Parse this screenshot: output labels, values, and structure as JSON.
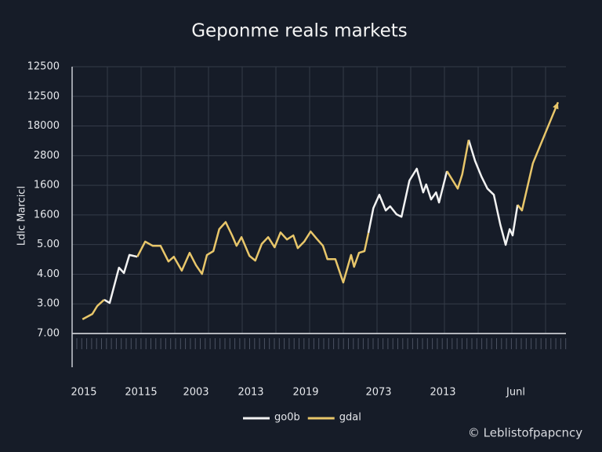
{
  "chart_data": {
    "type": "line",
    "title": "Geponme reals markets",
    "y_label": "Ldlc Marcicl",
    "watermark": "© Leblistofpapcncy",
    "x_labels": [
      "2015",
      "20115",
      "2003",
      "2013",
      "2019",
      "2073",
      "2013",
      "Junl"
    ],
    "xlim": [
      0,
      100
    ],
    "ylim": [
      0,
      9
    ],
    "yticks": [
      {
        "value": 0,
        "label": "7.00"
      },
      {
        "value": 1,
        "label": "3.00"
      },
      {
        "value": 2,
        "label": "4.00"
      },
      {
        "value": 3,
        "label": "5.00"
      },
      {
        "value": 4,
        "label": "1600"
      },
      {
        "value": 5,
        "label": "1600"
      },
      {
        "value": 6,
        "label": "2800"
      },
      {
        "value": 7,
        "label": "18000"
      },
      {
        "value": 8,
        "label": "12500"
      },
      {
        "value": 9,
        "label": "12500"
      }
    ],
    "grid": true,
    "x": [
      2.1,
      4.1,
      5.1,
      6.5,
      7.6,
      9.5,
      10.5,
      11.6,
      13.2,
      14.8,
      16.3,
      17.9,
      19.5,
      20.6,
      22.2,
      23.8,
      25.1,
      26.3,
      27.3,
      28.6,
      29.8,
      31.1,
      32.4,
      33.3,
      34.3,
      35.9,
      37.1,
      38.4,
      39.7,
      41.0,
      42.2,
      43.5,
      44.8,
      45.7,
      47.0,
      48.3,
      49.5,
      50.8,
      51.7,
      53.3,
      54.9,
      56.5,
      57.1,
      58.1,
      59.2,
      60.0,
      61.0,
      62.2,
      63.5,
      64.4,
      65.7,
      66.7,
      68.3,
      69.8,
      71.1,
      71.7,
      72.7,
      73.7,
      74.3,
      75.9,
      77.1,
      78.1,
      79.0,
      80.3,
      81.6,
      82.9,
      84.1,
      85.4,
      86.7,
      87.8,
      88.6,
      89.2,
      90.2,
      91.1,
      93.3,
      98.4
    ],
    "series": [
      {
        "name": "go0b",
        "color": "#f2f2f2",
        "values": [
          null,
          null,
          null,
          1.14,
          1.03,
          2.22,
          2.04,
          2.65,
          2.59,
          null,
          null,
          null,
          null,
          null,
          null,
          null,
          null,
          null,
          null,
          null,
          null,
          null,
          null,
          null,
          null,
          null,
          null,
          null,
          null,
          null,
          null,
          null,
          null,
          null,
          null,
          null,
          null,
          null,
          null,
          null,
          null,
          null,
          null,
          null,
          null,
          3.39,
          4.23,
          4.68,
          4.15,
          4.29,
          4.02,
          3.94,
          5.16,
          5.56,
          4.76,
          5.03,
          4.52,
          4.76,
          4.42,
          5.48,
          null,
          null,
          null,
          6.53,
          5.82,
          5.29,
          4.89,
          4.68,
          3.68,
          2.99,
          3.52,
          3.31,
          4.34,
          null,
          null,
          null
        ]
      },
      {
        "name": "gdal",
        "color": "#e8c66a",
        "values": [
          0.48,
          0.66,
          0.93,
          1.14,
          null,
          null,
          null,
          null,
          2.59,
          3.1,
          2.96,
          2.96,
          2.43,
          2.59,
          2.12,
          2.72,
          2.3,
          2.01,
          2.65,
          2.78,
          3.52,
          3.76,
          3.31,
          2.96,
          3.25,
          2.62,
          2.46,
          3.02,
          3.25,
          2.91,
          3.41,
          3.17,
          3.31,
          2.88,
          3.1,
          3.44,
          3.2,
          2.96,
          2.51,
          2.51,
          1.72,
          2.65,
          2.25,
          2.72,
          2.78,
          3.39,
          null,
          null,
          null,
          null,
          null,
          null,
          null,
          null,
          null,
          null,
          null,
          null,
          null,
          5.48,
          5.16,
          4.89,
          5.37,
          6.53,
          null,
          null,
          null,
          null,
          null,
          null,
          null,
          null,
          4.34,
          4.15,
          5.74,
          7.8
        ]
      }
    ]
  }
}
